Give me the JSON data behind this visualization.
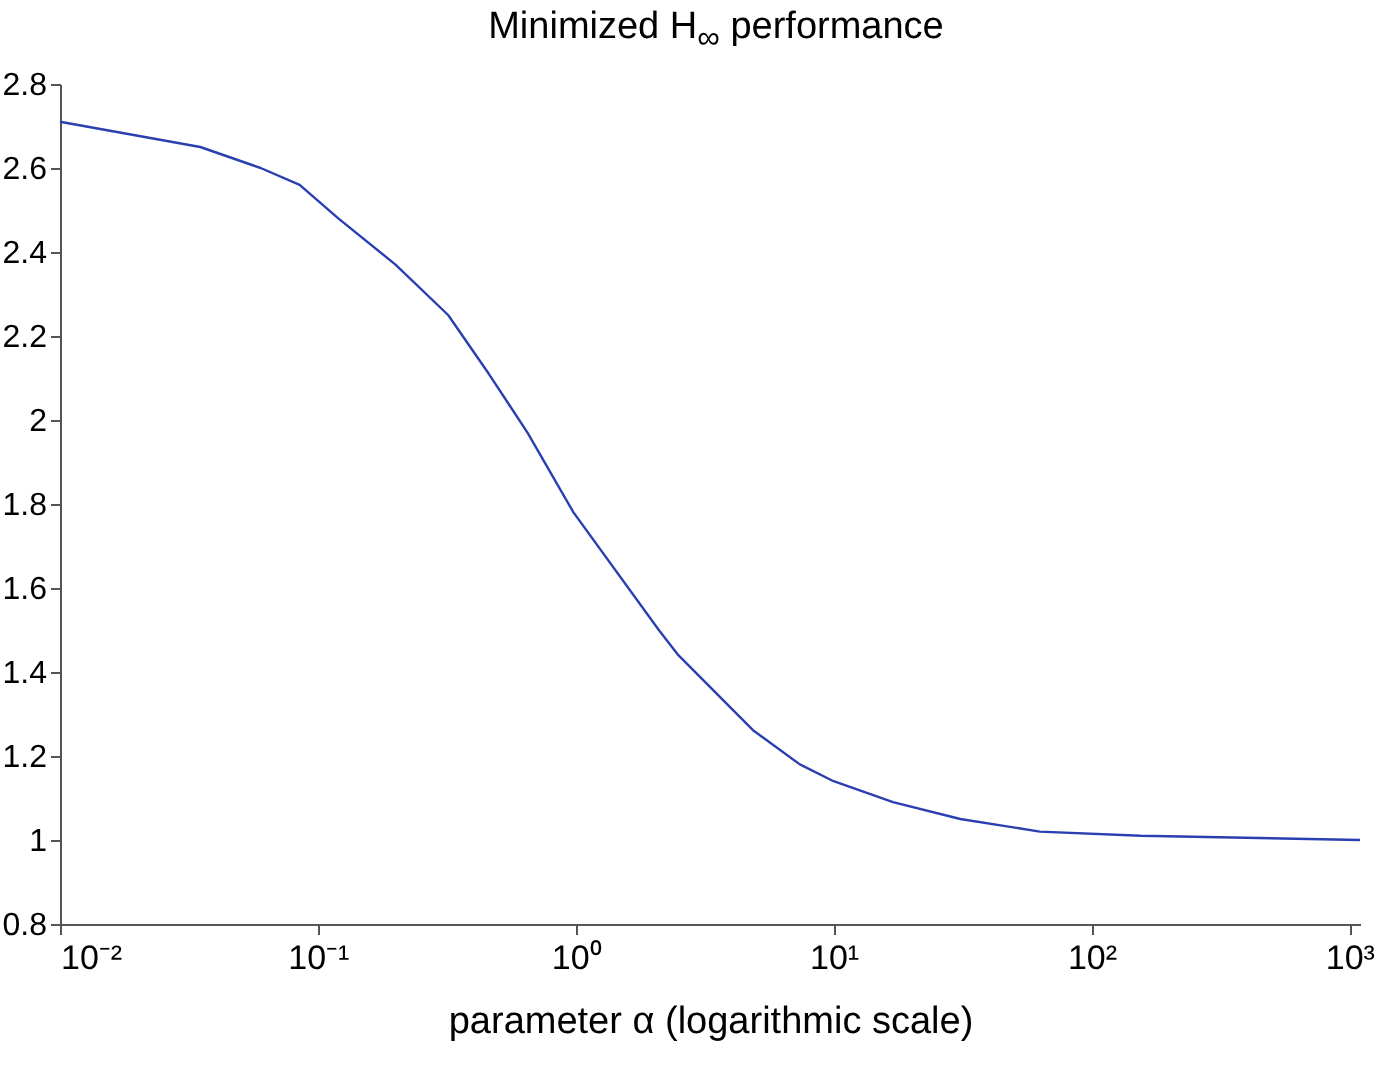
{
  "chart_data": {
    "type": "line",
    "title": "Minimized H$_{∞}$ performance",
    "xlabel": "parameter   α  (logarithmic scale)",
    "log": "x",
    "x": [
      0.01,
      0.035,
      0.06,
      0.085,
      0.12,
      0.2,
      0.32,
      0.46,
      0.65,
      0.98,
      2.1,
      2.5,
      4.9,
      7.4,
      10,
      17,
      31,
      63,
      155,
      1100
    ],
    "series": [
      {
        "color": "#2a3fb0",
        "values": [
          2.71,
          2.65,
          2.6,
          2.56,
          2.48,
          2.37,
          2.25,
          2.11,
          1.97,
          1.78,
          1.5,
          1.44,
          1.26,
          1.18,
          1.14,
          1.09,
          1.05,
          1.02,
          1.01,
          1.0
        ]
      }
    ],
    "xlim": [
      0.01,
      1100
    ],
    "ylim": [
      0.8,
      2.8
    ],
    "xticks": [
      {
        "value": 0.01,
        "label": "10⁻²"
      },
      {
        "value": 0.1,
        "label": "10⁻¹"
      },
      {
        "value": 1,
        "label": "10⁰"
      },
      {
        "value": 10,
        "label": "10¹"
      },
      {
        "value": 100,
        "label": "10²"
      },
      {
        "value": 1000,
        "label": "10³"
      }
    ],
    "yticks": [
      0.8,
      1,
      1.2,
      1.4,
      1.6,
      1.8,
      2,
      2.2,
      2.4,
      2.6,
      2.8
    ],
    "grid": false,
    "legend": false,
    "marker": "none",
    "line_style": "solid"
  }
}
